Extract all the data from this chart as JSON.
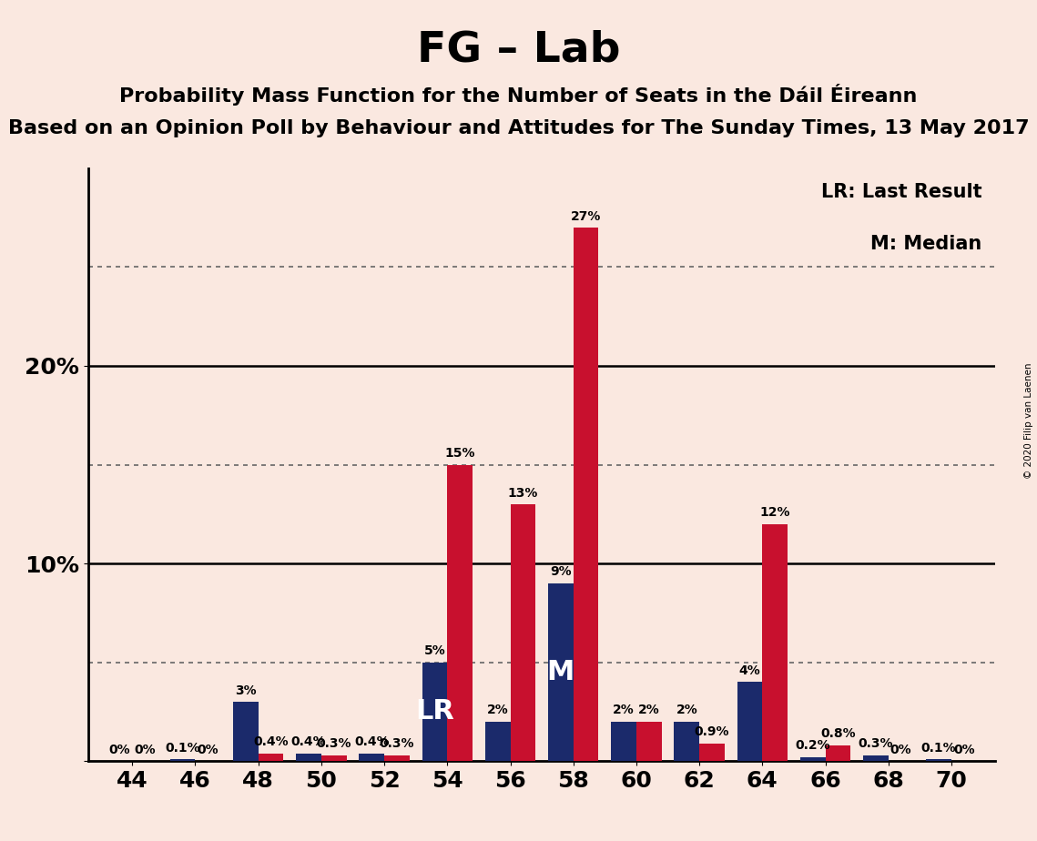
{
  "title": "FG – Lab",
  "subtitle1": "Probability Mass Function for the Number of Seats in the Dáil Éireann",
  "subtitle2": "Based on an Opinion Poll by Behaviour and Attitudes for The Sunday Times, 13 May 2017",
  "copyright": "© 2020 Filip van Laenen",
  "legend_lr": "LR: Last Result",
  "legend_m": "M: Median",
  "lr_label": "LR",
  "m_label": "M",
  "seats": [
    44,
    46,
    48,
    50,
    52,
    54,
    56,
    58,
    60,
    62,
    64,
    66,
    68,
    70
  ],
  "red_values": [
    0.0,
    0.0,
    0.4,
    0.3,
    0.3,
    15.0,
    13.0,
    27.0,
    2.0,
    0.9,
    12.0,
    0.8,
    0.0,
    0.0
  ],
  "navy_values": [
    0.0,
    0.1,
    3.0,
    0.4,
    0.4,
    5.0,
    2.0,
    9.0,
    2.0,
    2.0,
    4.0,
    0.2,
    0.3,
    0.1
  ],
  "red_labels": [
    "0%",
    "0%",
    "0.4%",
    "0.3%",
    "0.3%",
    "15%",
    "13%",
    "27%",
    "2%",
    "0.9%",
    "12%",
    "0.8%",
    "0%",
    "0%"
  ],
  "navy_labels": [
    "0%",
    "0.1%",
    "3%",
    "0.4%",
    "0.4%",
    "5%",
    "2%",
    "9%",
    "2%",
    "2%",
    "4%",
    "0.2%",
    "0.3%",
    "0.1%"
  ],
  "lr_seat": 54,
  "m_seat": 58,
  "red_color": "#C8102E",
  "navy_color": "#1B2A6B",
  "background_color": "#FAE8E0",
  "title_fontsize": 34,
  "subtitle1_fontsize": 16,
  "subtitle2_fontsize": 16,
  "ytick_labels": [
    "",
    "10%",
    "20%"
  ],
  "yticks": [
    0,
    10,
    20
  ],
  "ylim": [
    0,
    30
  ],
  "bar_width": 0.4,
  "label_fontsize": 10,
  "tick_fontsize": 18,
  "legend_fontsize": 15
}
